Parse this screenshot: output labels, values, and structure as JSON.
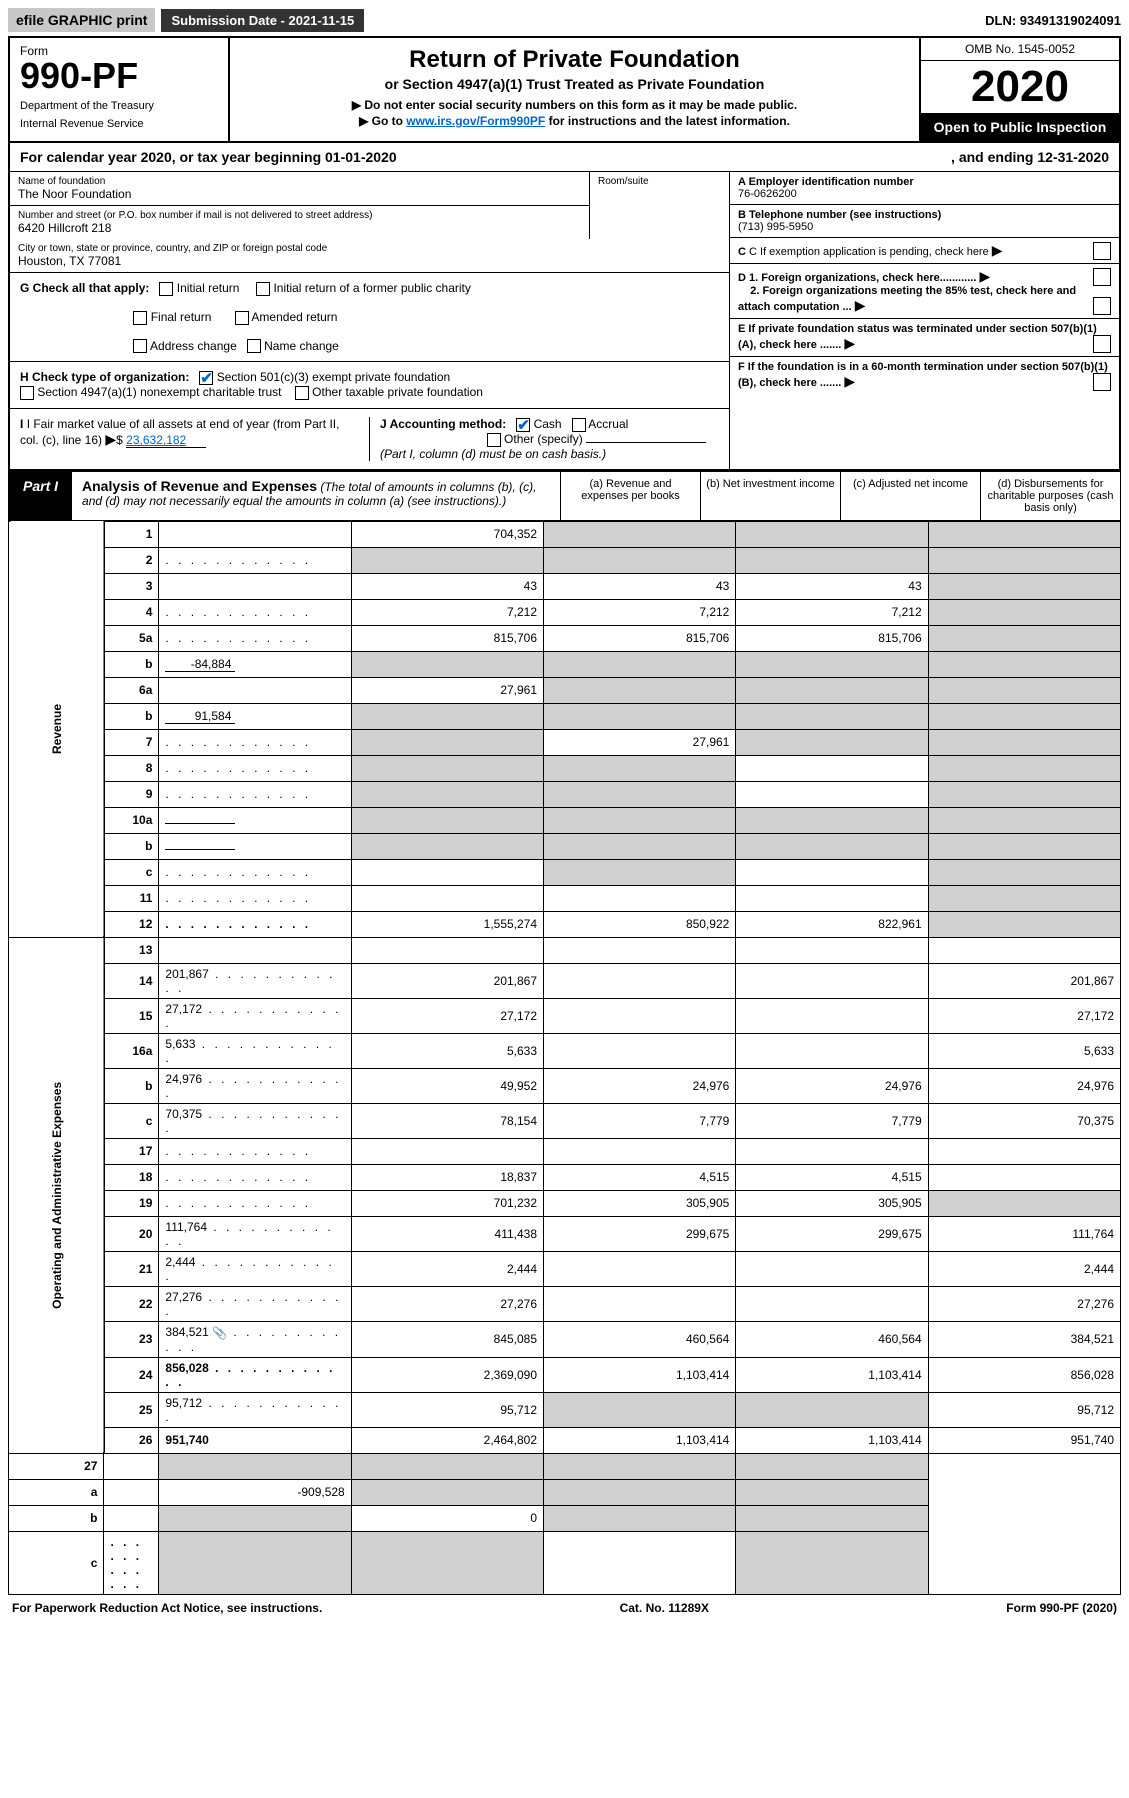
{
  "top": {
    "efile": "efile GRAPHIC print",
    "submission": "Submission Date - 2021-11-15",
    "dln": "DLN: 93491319024091"
  },
  "header": {
    "form_label": "Form",
    "form_num": "990-PF",
    "dept1": "Department of the Treasury",
    "dept2": "Internal Revenue Service",
    "title": "Return of Private Foundation",
    "sub1": "or Section 4947(a)(1) Trust Treated as Private Foundation",
    "sub2": "▶ Do not enter social security numbers on this form as it may be made public.",
    "sub3_pre": "▶ Go to ",
    "sub3_link": "www.irs.gov/Form990PF",
    "sub3_post": " for instructions and the latest information.",
    "omb": "OMB No. 1545-0052",
    "year": "2020",
    "open": "Open to Public Inspection"
  },
  "cal": {
    "left": "For calendar year 2020, or tax year beginning 01-01-2020",
    "right": ", and ending 12-31-2020"
  },
  "info": {
    "name_label": "Name of foundation",
    "name": "The Noor Foundation",
    "addr_label": "Number and street (or P.O. box number if mail is not delivered to street address)",
    "addr": "6420 Hillcroft 218",
    "room_label": "Room/suite",
    "city_label": "City or town, state or province, country, and ZIP or foreign postal code",
    "city": "Houston, TX  77081",
    "a_label": "A Employer identification number",
    "a_val": "76-0626200",
    "b_label": "B Telephone number (see instructions)",
    "b_val": "(713) 995-5950",
    "c_label": "C If exemption application is pending, check here",
    "d1": "D 1. Foreign organizations, check here............",
    "d2": "2. Foreign organizations meeting the 85% test, check here and attach computation ...",
    "e": "E   If private foundation status was terminated under section 507(b)(1)(A), check here .......",
    "f": "F   If the foundation is in a 60-month termination under section 507(b)(1)(B), check here .......",
    "g_label": "G Check all that apply:",
    "g_opts": [
      "Initial return",
      "Initial return of a former public charity",
      "Final return",
      "Amended return",
      "Address change",
      "Name change"
    ],
    "h_label": "H Check type of organization:",
    "h_opt1": "Section 501(c)(3) exempt private foundation",
    "h_opt2": "Section 4947(a)(1) nonexempt charitable trust",
    "h_opt3": "Other taxable private foundation",
    "i_label": "I Fair market value of all assets at end of year (from Part II, col. (c), line 16)",
    "i_val": "23,632,182",
    "j_label": "J Accounting method:",
    "j_cash": "Cash",
    "j_accr": "Accrual",
    "j_other": "Other (specify)",
    "j_note": "(Part I, column (d) must be on cash basis.)"
  },
  "part1": {
    "tag": "Part I",
    "title": "Analysis of Revenue and Expenses",
    "note": "(The total of amounts in columns (b), (c), and (d) may not necessarily equal the amounts in column (a) (see instructions).)",
    "col_a": "(a)   Revenue and expenses per books",
    "col_b": "(b)   Net investment income",
    "col_c": "(c)   Adjusted net income",
    "col_d": "(d)   Disbursements for charitable purposes (cash basis only)"
  },
  "side_rev": "Revenue",
  "side_exp": "Operating and Administrative Expenses",
  "rows": [
    {
      "n": "1",
      "d": "",
      "a": "704,352",
      "b": "",
      "c": "",
      "grey": [
        "b",
        "c",
        "d"
      ]
    },
    {
      "n": "2",
      "d": "",
      "dots": true,
      "a": "",
      "b": "",
      "c": "",
      "grey": [
        "a",
        "b",
        "c",
        "d"
      ]
    },
    {
      "n": "3",
      "d": "",
      "a": "43",
      "b": "43",
      "c": "43",
      "grey": [
        "d"
      ]
    },
    {
      "n": "4",
      "d": "",
      "dots": true,
      "a": "7,212",
      "b": "7,212",
      "c": "7,212",
      "grey": [
        "d"
      ]
    },
    {
      "n": "5a",
      "d": "",
      "dots": true,
      "a": "815,706",
      "b": "815,706",
      "c": "815,706",
      "grey": [
        "d"
      ]
    },
    {
      "n": "b",
      "d": "",
      "inline": "-84,884",
      "a": "",
      "b": "",
      "c": "",
      "grey": [
        "a",
        "b",
        "c",
        "d"
      ]
    },
    {
      "n": "6a",
      "d": "",
      "a": "27,961",
      "b": "",
      "c": "",
      "grey": [
        "b",
        "c",
        "d"
      ]
    },
    {
      "n": "b",
      "d": "",
      "inline": "91,584",
      "a": "",
      "b": "",
      "c": "",
      "grey": [
        "a",
        "b",
        "c",
        "d"
      ]
    },
    {
      "n": "7",
      "d": "",
      "dots": true,
      "a": "",
      "b": "27,961",
      "c": "",
      "grey": [
        "a",
        "c",
        "d"
      ]
    },
    {
      "n": "8",
      "d": "",
      "dots": true,
      "a": "",
      "b": "",
      "c": "",
      "grey": [
        "a",
        "b",
        "d"
      ]
    },
    {
      "n": "9",
      "d": "",
      "dots": true,
      "a": "",
      "b": "",
      "c": "",
      "grey": [
        "a",
        "b",
        "d"
      ]
    },
    {
      "n": "10a",
      "d": "",
      "inline": " ",
      "a": "",
      "b": "",
      "c": "",
      "grey": [
        "a",
        "b",
        "c",
        "d"
      ]
    },
    {
      "n": "b",
      "d": "",
      "dots": true,
      "inline": " ",
      "a": "",
      "b": "",
      "c": "",
      "grey": [
        "a",
        "b",
        "c",
        "d"
      ]
    },
    {
      "n": "c",
      "d": "",
      "dots": true,
      "a": "",
      "b": "",
      "c": "",
      "grey": [
        "b",
        "d"
      ]
    },
    {
      "n": "11",
      "d": "",
      "dots": true,
      "a": "",
      "b": "",
      "c": "",
      "grey": [
        "d"
      ]
    },
    {
      "n": "12",
      "d": "",
      "dots": true,
      "bold": true,
      "a": "1,555,274",
      "b": "850,922",
      "c": "822,961",
      "grey": [
        "d"
      ]
    }
  ],
  "rows_exp": [
    {
      "n": "13",
      "d": "",
      "a": "",
      "b": "",
      "c": ""
    },
    {
      "n": "14",
      "d": "201,867",
      "dots": true,
      "a": "201,867",
      "b": "",
      "c": ""
    },
    {
      "n": "15",
      "d": "27,172",
      "dots": true,
      "a": "27,172",
      "b": "",
      "c": ""
    },
    {
      "n": "16a",
      "d": "5,633",
      "dots": true,
      "a": "5,633",
      "b": "",
      "c": ""
    },
    {
      "n": "b",
      "d": "24,976",
      "dots": true,
      "a": "49,952",
      "b": "24,976",
      "c": "24,976"
    },
    {
      "n": "c",
      "d": "70,375",
      "dots": true,
      "a": "78,154",
      "b": "7,779",
      "c": "7,779"
    },
    {
      "n": "17",
      "d": "",
      "dots": true,
      "a": "",
      "b": "",
      "c": ""
    },
    {
      "n": "18",
      "d": "",
      "dots": true,
      "a": "18,837",
      "b": "4,515",
      "c": "4,515"
    },
    {
      "n": "19",
      "d": "",
      "dots": true,
      "a": "701,232",
      "b": "305,905",
      "c": "305,905",
      "grey": [
        "d"
      ]
    },
    {
      "n": "20",
      "d": "111,764",
      "dots": true,
      "a": "411,438",
      "b": "299,675",
      "c": "299,675"
    },
    {
      "n": "21",
      "d": "2,444",
      "dots": true,
      "a": "2,444",
      "b": "",
      "c": ""
    },
    {
      "n": "22",
      "d": "27,276",
      "dots": true,
      "a": "27,276",
      "b": "",
      "c": ""
    },
    {
      "n": "23",
      "d": "384,521",
      "dots": true,
      "icon": true,
      "a": "845,085",
      "b": "460,564",
      "c": "460,564"
    },
    {
      "n": "24",
      "d": "856,028",
      "dots": true,
      "bold": true,
      "a": "2,369,090",
      "b": "1,103,414",
      "c": "1,103,414"
    },
    {
      "n": "25",
      "d": "95,712",
      "dots": true,
      "a": "95,712",
      "b": "",
      "c": "",
      "grey": [
        "b",
        "c"
      ]
    },
    {
      "n": "26",
      "d": "951,740",
      "bold": true,
      "a": "2,464,802",
      "b": "1,103,414",
      "c": "1,103,414"
    }
  ],
  "rows_final": [
    {
      "n": "27",
      "d": "",
      "a": "",
      "b": "",
      "c": "",
      "grey": [
        "a",
        "b",
        "c",
        "d"
      ]
    },
    {
      "n": "a",
      "d": "",
      "bold": true,
      "a": "-909,528",
      "b": "",
      "c": "",
      "grey": [
        "b",
        "c",
        "d"
      ]
    },
    {
      "n": "b",
      "d": "",
      "bold": true,
      "a": "",
      "b": "0",
      "c": "",
      "grey": [
        "a",
        "c",
        "d"
      ]
    },
    {
      "n": "c",
      "d": "",
      "dots": true,
      "bold": true,
      "a": "",
      "b": "",
      "c": "",
      "grey": [
        "a",
        "b",
        "d"
      ]
    }
  ],
  "footer": {
    "left": "For Paperwork Reduction Act Notice, see instructions.",
    "mid": "Cat. No. 11289X",
    "right": "Form 990-PF (2020)"
  },
  "colors": {
    "grey_bg": "#d0d0d0",
    "black": "#000000",
    "link": "#0066cc"
  }
}
